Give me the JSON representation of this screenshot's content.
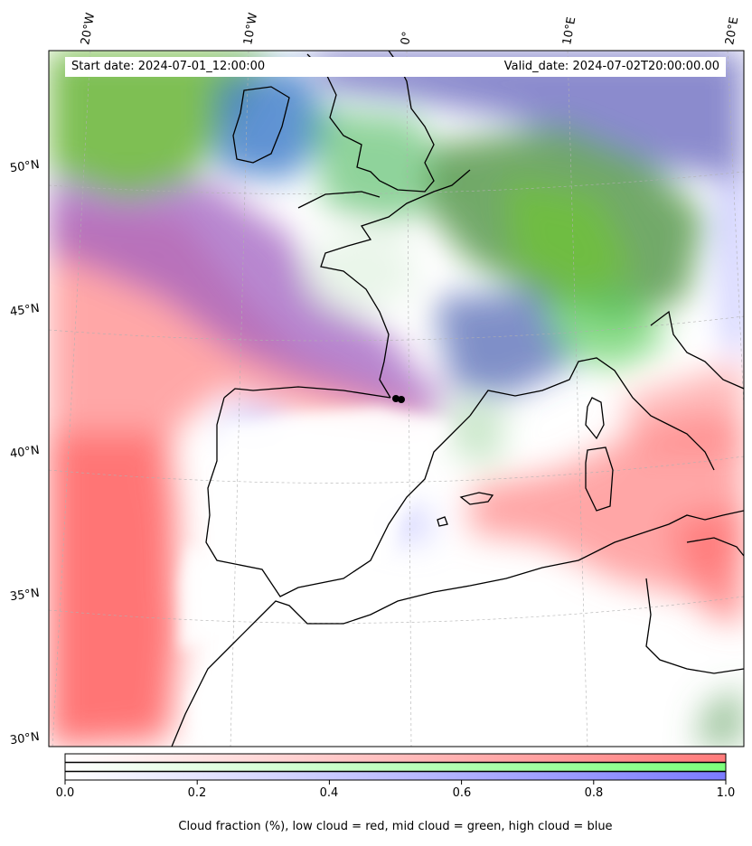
{
  "map": {
    "lon_labels": [
      "20°W",
      "10°W",
      "0°",
      "10°E",
      "20°E"
    ],
    "lat_labels": [
      "50°N",
      "45°N",
      "40°N",
      "35°N",
      "30°N"
    ],
    "start_date": "Start date: 2024-07-01_12:00:00",
    "valid_date": "Valid_date: 2024-07-02T20:00:00.00"
  },
  "colorbar": {
    "ticks": [
      "0.0",
      "0.2",
      "0.4",
      "0.6",
      "0.8",
      "1.0"
    ],
    "label": "Cloud fraction (%), low cloud = red, mid cloud = green, high cloud = blue",
    "colors": {
      "low": "#ff7b7b",
      "mid": "#7bff7b",
      "high": "#7b7bff"
    }
  }
}
